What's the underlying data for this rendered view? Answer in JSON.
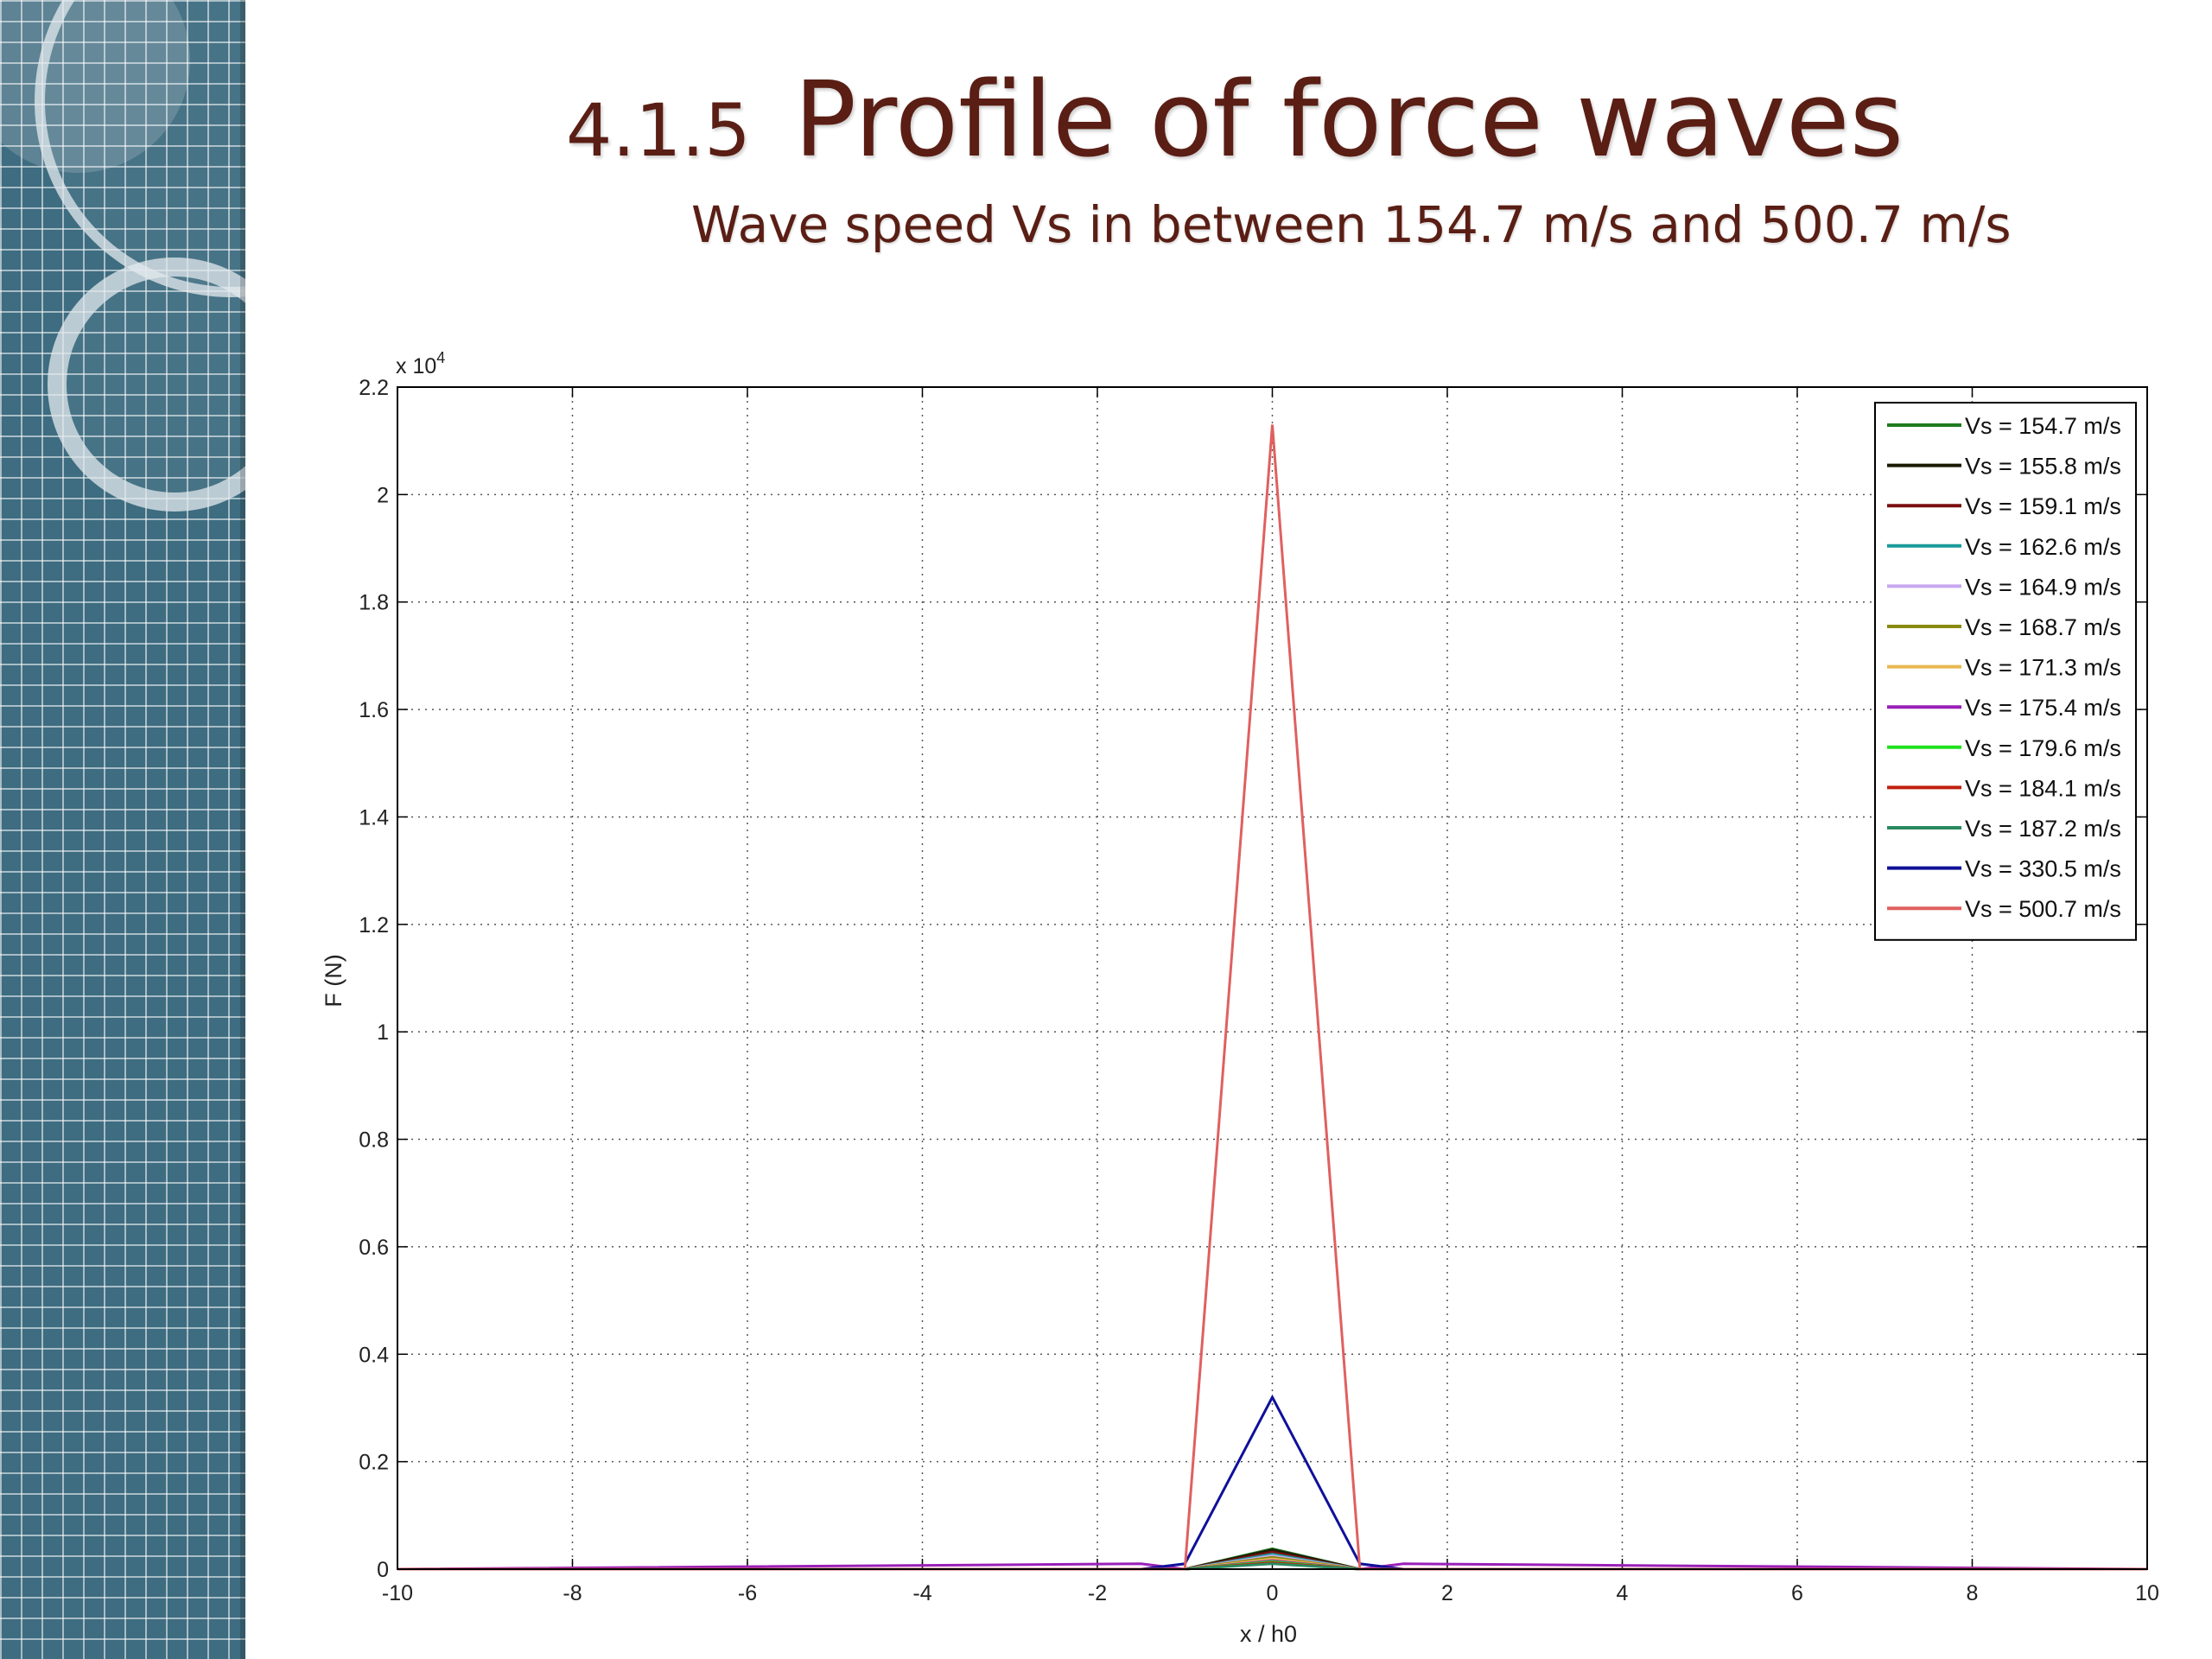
{
  "slide": {
    "title_number": "4.1.5",
    "title": "Profile of force waves",
    "subtitle": "Wave speed Vs in between 154.7 m/s and 500.7 m/s"
  },
  "chart_data": {
    "type": "line",
    "title": "",
    "xlabel": "x / h0",
    "ylabel": "F (N)",
    "y_scale_multiplier_label": "x 10",
    "y_scale_exponent": "4",
    "xlim": [
      -10,
      10
    ],
    "ylim": [
      0,
      22000
    ],
    "x_ticks": [
      -10,
      -8,
      -6,
      -4,
      -2,
      0,
      2,
      4,
      6,
      8,
      10
    ],
    "y_ticks": [
      0,
      2000,
      4000,
      6000,
      8000,
      10000,
      12000,
      14000,
      16000,
      18000,
      20000,
      22000
    ],
    "y_tick_labels": [
      "0",
      "0.2",
      "0.4",
      "0.6",
      "0.8",
      "1",
      "1.2",
      "1.4",
      "1.6",
      "1.8",
      "2",
      "2.2"
    ],
    "grid": true,
    "legend_position": "top-right",
    "x": [
      -10,
      -1.5,
      -1,
      0,
      1,
      1.5,
      10
    ],
    "series": [
      {
        "name": "Vs = 154.7 m/s",
        "color": "#1f7a1f",
        "values": [
          0,
          0,
          0,
          380,
          0,
          0,
          0
        ]
      },
      {
        "name": "Vs = 155.8 m/s",
        "color": "#1a1a00",
        "values": [
          0,
          0,
          0,
          360,
          0,
          0,
          0
        ]
      },
      {
        "name": "Vs = 159.1 m/s",
        "color": "#7a1010",
        "values": [
          0,
          0,
          0,
          320,
          0,
          0,
          0
        ]
      },
      {
        "name": "Vs = 162.6 m/s",
        "color": "#1a9a9a",
        "values": [
          0,
          0,
          0,
          280,
          0,
          0,
          0
        ]
      },
      {
        "name": "Vs = 164.9 m/s",
        "color": "#c8a8f0",
        "values": [
          0,
          0,
          0,
          250,
          0,
          0,
          0
        ]
      },
      {
        "name": "Vs = 168.7 m/s",
        "color": "#8a8a10",
        "values": [
          0,
          0,
          0,
          220,
          0,
          0,
          0
        ]
      },
      {
        "name": "Vs = 171.3 m/s",
        "color": "#e8b850",
        "values": [
          0,
          0,
          0,
          190,
          0,
          0,
          0
        ]
      },
      {
        "name": "Vs = 175.4 m/s",
        "color": "#9a20b8",
        "values": [
          0,
          100,
          0,
          160,
          0,
          100,
          0
        ]
      },
      {
        "name": "Vs = 179.6 m/s",
        "color": "#20e020",
        "values": [
          0,
          0,
          0,
          140,
          0,
          0,
          0
        ]
      },
      {
        "name": "Vs = 184.1 m/s",
        "color": "#c02010",
        "values": [
          0,
          0,
          0,
          120,
          0,
          0,
          0
        ]
      },
      {
        "name": "Vs = 187.2 m/s",
        "color": "#2a8a60",
        "values": [
          0,
          0,
          0,
          100,
          0,
          0,
          0
        ]
      },
      {
        "name": "Vs = 330.5 m/s",
        "color": "#10109a",
        "values": [
          0,
          0,
          100,
          3200,
          100,
          0,
          0
        ]
      },
      {
        "name": "Vs = 500.7 m/s",
        "color": "#e06060",
        "values": [
          0,
          0,
          0,
          21300,
          0,
          0,
          0
        ]
      }
    ]
  }
}
